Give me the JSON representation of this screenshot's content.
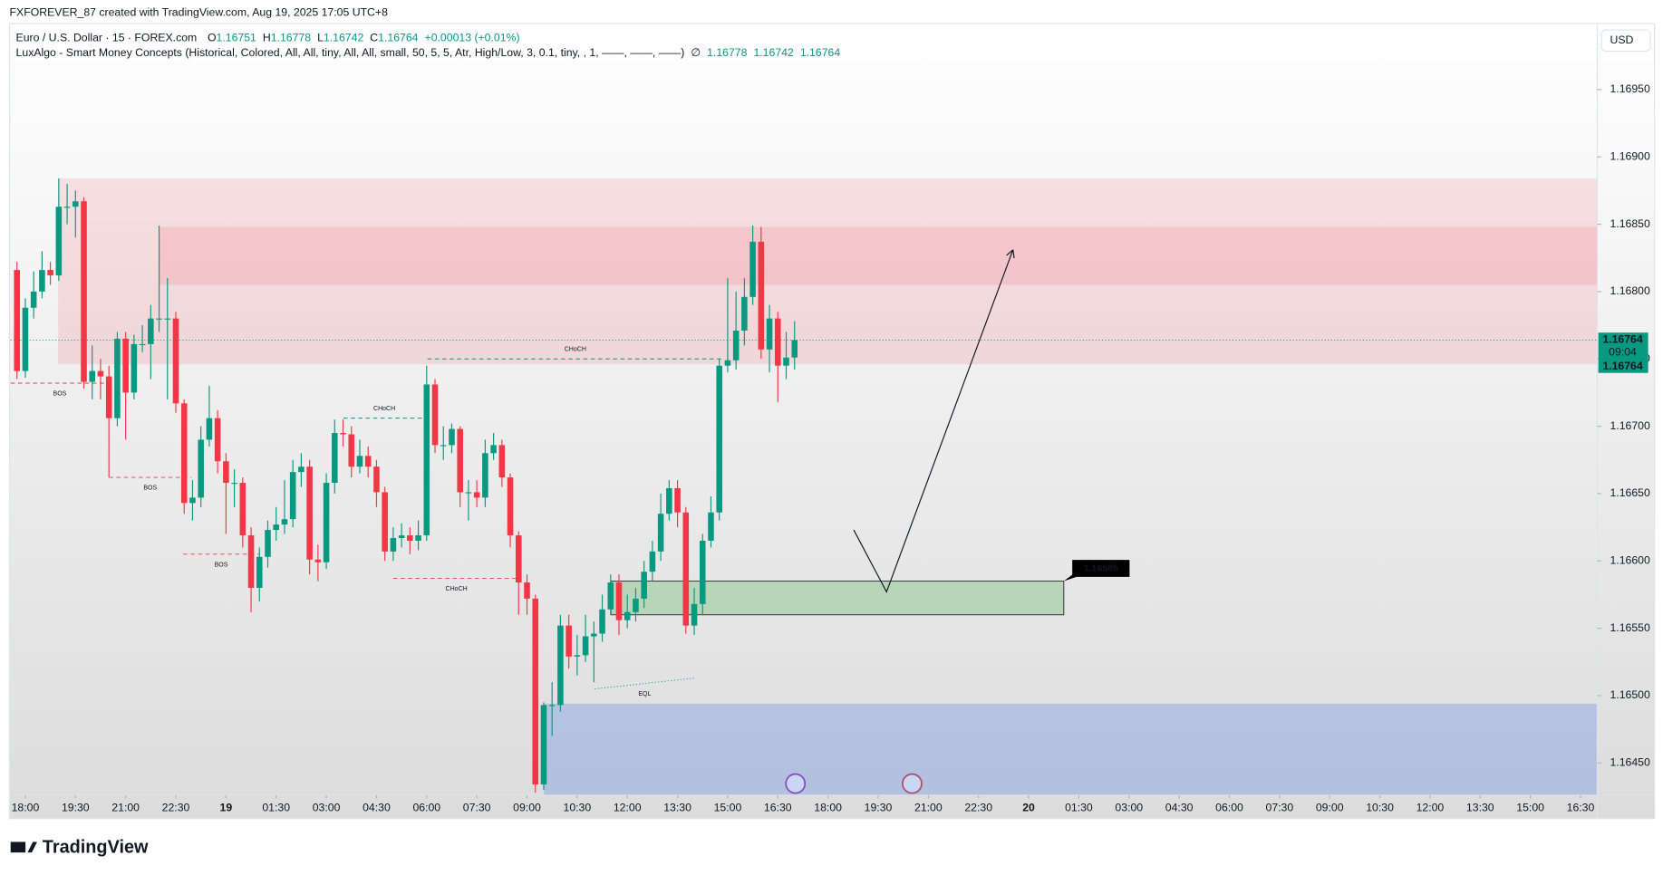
{
  "header": {
    "credit": "FXFOREVER_87 created with TradingView.com, Aug 19, 2025 17:05 UTC+8",
    "currency": "USD",
    "brand": "TradingView"
  },
  "chart_data": {
    "type": "candlestick",
    "symbol": "Euro / U.S. Dollar · 15 · FOREX.com",
    "ohlc": [
      {
        "label": "O",
        "value": 1.16751
      },
      {
        "label": "H",
        "value": 1.16778
      },
      {
        "label": "L",
        "value": 1.16742
      },
      {
        "label": "C",
        "value": 1.16764
      }
    ],
    "change": "+0.00013 (+0.01%)",
    "indicator": {
      "name": "LuxAlgo - Smart Money Concepts (Historical, Colored, All, All, tiny, All, All, small, 50, 5, 5, Atr, High/Low, 3, 0.1, tiny, , 1, ——, ——, ——)",
      "status": "∅",
      "values": [
        1.16778,
        1.16742,
        1.16764
      ]
    },
    "up_color": "#089981",
    "down_color": "#f23645",
    "grid": false,
    "x": [
      17.75,
      18,
      18.25,
      18.5,
      18.75,
      19,
      19.25,
      19.5,
      19.75,
      20,
      20.25,
      20.5,
      20.75,
      21,
      21.25,
      21.5,
      21.75,
      22,
      22.25,
      22.5,
      22.75,
      23,
      23.25,
      23.5,
      23.75,
      24,
      24.25,
      24.5,
      24.75,
      25,
      25.25,
      25.5,
      25.75,
      26,
      26.25,
      26.5,
      26.75,
      27,
      27.25,
      27.5,
      27.75,
      28,
      28.25,
      28.5,
      28.75,
      29,
      29.25,
      29.5,
      29.75,
      30,
      30.25,
      30.5,
      30.75,
      31,
      31.25,
      31.5,
      31.75,
      32,
      32.25,
      32.5,
      32.75,
      33,
      33.25,
      33.5,
      33.75,
      34,
      34.25,
      34.5,
      34.75,
      35,
      35.25,
      35.5,
      35.75,
      36,
      36.25,
      36.5,
      36.75,
      37,
      37.25,
      37.5,
      37.75,
      38,
      38.25,
      38.5,
      38.75,
      39,
      39.25,
      39.5,
      39.75,
      40,
      40.25,
      40.5,
      40.75,
      41
    ],
    "open": [
      1.16816,
      1.16741,
      1.16788,
      1.168,
      1.16816,
      1.16812,
      1.16863,
      1.16863,
      1.16867,
      1.16733,
      1.16741,
      1.16737,
      1.16706,
      1.16765,
      1.16725,
      1.16761,
      1.16761,
      1.1678,
      1.1678,
      1.1678,
      1.16717,
      1.16643,
      1.16647,
      1.1669,
      1.16706,
      1.16674,
      1.16658,
      1.16658,
      1.16619,
      1.1658,
      1.16603,
      1.16623,
      1.16627,
      1.16631,
      1.16666,
      1.1667,
      1.16601,
      1.16599,
      1.16658,
      1.16695,
      1.16694,
      1.1667,
      1.16678,
      1.1667,
      1.16651,
      1.16607,
      1.16617,
      1.16619,
      1.16615,
      1.16619,
      1.16731,
      1.16686,
      1.16686,
      1.16698,
      1.16651,
      1.16651,
      1.16647,
      1.1668,
      1.16686,
      1.16662,
      1.16619,
      1.16584,
      1.16572,
      1.16434,
      1.16493,
      1.16493,
      1.16552,
      1.16529,
      1.1653,
      1.16544,
      1.16546,
      1.16564,
      1.16584,
      1.16556,
      1.16562,
      1.16572,
      1.16592,
      1.16607,
      1.16635,
      1.16654,
      1.16636,
      1.16552,
      1.16568,
      1.16615,
      1.16636,
      1.16745,
      1.16749,
      1.16771,
      1.16796,
      1.16837,
      1.16757,
      1.1678,
      1.16745,
      1.16751
    ],
    "high": [
      1.16822,
      1.16795,
      1.16815,
      1.1683,
      1.16822,
      1.16884,
      1.1688,
      1.16875,
      1.1687,
      1.1676,
      1.1675,
      1.16745,
      1.1677,
      1.1677,
      1.16768,
      1.16775,
      1.1679,
      1.16849,
      1.1681,
      1.16785,
      1.1672,
      1.1666,
      1.167,
      1.1673,
      1.16712,
      1.1668,
      1.16668,
      1.16662,
      1.16625,
      1.1661,
      1.1663,
      1.1664,
      1.1666,
      1.16675,
      1.1668,
      1.16675,
      1.16612,
      1.16665,
      1.16705,
      1.16705,
      1.167,
      1.1669,
      1.16685,
      1.16675,
      1.16655,
      1.16625,
      1.16628,
      1.16625,
      1.1663,
      1.16745,
      1.16735,
      1.167,
      1.16702,
      1.167,
      1.1666,
      1.1666,
      1.1669,
      1.16695,
      1.1669,
      1.16665,
      1.16622,
      1.1659,
      1.16575,
      1.16495,
      1.1651,
      1.1656,
      1.1656,
      1.16545,
      1.1656,
      1.16555,
      1.16575,
      1.1659,
      1.1659,
      1.16575,
      1.1658,
      1.166,
      1.16615,
      1.1665,
      1.1666,
      1.1666,
      1.1664,
      1.1658,
      1.1662,
      1.16648,
      1.1675,
      1.1681,
      1.168,
      1.1681,
      1.16849,
      1.16848,
      1.1679,
      1.16785,
      1.1677,
      1.16778
    ],
    "low": [
      1.16735,
      1.16736,
      1.1678,
      1.16795,
      1.16805,
      1.16808,
      1.1685,
      1.1684,
      1.16728,
      1.1672,
      1.1672,
      1.16662,
      1.167,
      1.1669,
      1.1672,
      1.16755,
      1.16735,
      1.1677,
      1.1672,
      1.1671,
      1.16635,
      1.1663,
      1.1664,
      1.16685,
      1.16665,
      1.1662,
      1.1664,
      1.1661,
      1.16562,
      1.1657,
      1.16595,
      1.16615,
      1.1662,
      1.16625,
      1.16655,
      1.1659,
      1.16585,
      1.16594,
      1.1665,
      1.16685,
      1.16662,
      1.16665,
      1.16662,
      1.1664,
      1.166,
      1.166,
      1.1661,
      1.16605,
      1.16608,
      1.16615,
      1.1668,
      1.16675,
      1.1668,
      1.1664,
      1.1663,
      1.1664,
      1.1664,
      1.16675,
      1.16655,
      1.1661,
      1.1656,
      1.1656,
      1.16428,
      1.1643,
      1.1647,
      1.16488,
      1.1652,
      1.16515,
      1.16525,
      1.1651,
      1.1654,
      1.1656,
      1.16545,
      1.1655,
      1.16555,
      1.16565,
      1.16585,
      1.166,
      1.1663,
      1.16625,
      1.16546,
      1.16545,
      1.1656,
      1.1661,
      1.1663,
      1.1674,
      1.16742,
      1.1676,
      1.1679,
      1.1675,
      1.1674,
      1.16718,
      1.16735,
      1.16742
    ],
    "close": [
      1.16741,
      1.16788,
      1.168,
      1.16816,
      1.16812,
      1.16863,
      1.16863,
      1.16867,
      1.16733,
      1.16741,
      1.16737,
      1.16706,
      1.16765,
      1.16725,
      1.16761,
      1.16761,
      1.1678,
      1.1678,
      1.1678,
      1.16717,
      1.16643,
      1.16647,
      1.1669,
      1.16706,
      1.16674,
      1.16658,
      1.16658,
      1.16619,
      1.1658,
      1.16603,
      1.16623,
      1.16627,
      1.16631,
      1.16666,
      1.1667,
      1.16601,
      1.16599,
      1.16658,
      1.16695,
      1.16694,
      1.1667,
      1.16678,
      1.1667,
      1.16651,
      1.16607,
      1.16617,
      1.16619,
      1.16615,
      1.16619,
      1.16731,
      1.16686,
      1.16686,
      1.16698,
      1.16651,
      1.16651,
      1.16647,
      1.1668,
      1.16686,
      1.16662,
      1.16619,
      1.16584,
      1.16572,
      1.16434,
      1.16493,
      1.16493,
      1.16552,
      1.16529,
      1.1653,
      1.16544,
      1.16546,
      1.16564,
      1.16584,
      1.16556,
      1.16562,
      1.16572,
      1.16592,
      1.16607,
      1.16635,
      1.16654,
      1.16636,
      1.16552,
      1.16568,
      1.16615,
      1.16636,
      1.16745,
      1.16749,
      1.16771,
      1.16796,
      1.16837,
      1.16757,
      1.1678,
      1.16745,
      1.16751,
      1.16764
    ],
    "xlim": [
      17.56,
      65.0
    ],
    "xticks": [
      {
        "value": 18,
        "label": "18:00"
      },
      {
        "value": 19.5,
        "label": "19:30"
      },
      {
        "value": 21,
        "label": "21:00"
      },
      {
        "value": 22.5,
        "label": "22:30"
      },
      {
        "value": 24,
        "label": "19"
      },
      {
        "value": 25.5,
        "label": "01:30"
      },
      {
        "value": 27,
        "label": "03:00"
      },
      {
        "value": 28.5,
        "label": "04:30"
      },
      {
        "value": 30,
        "label": "06:00"
      },
      {
        "value": 31.5,
        "label": "07:30"
      },
      {
        "value": 33,
        "label": "09:00"
      },
      {
        "value": 34.5,
        "label": "10:30"
      },
      {
        "value": 36,
        "label": "12:00"
      },
      {
        "value": 37.5,
        "label": "13:30"
      },
      {
        "value": 39,
        "label": "15:00"
      },
      {
        "value": 40.5,
        "label": "16:30"
      },
      {
        "value": 42,
        "label": "18:00"
      },
      {
        "value": 43.5,
        "label": "19:30"
      },
      {
        "value": 45,
        "label": "21:00"
      },
      {
        "value": 46.5,
        "label": "22:30"
      },
      {
        "value": 48,
        "label": "20"
      },
      {
        "value": 49.5,
        "label": "01:30"
      },
      {
        "value": 51,
        "label": "03:00"
      },
      {
        "value": 52.5,
        "label": "04:30"
      },
      {
        "value": 54,
        "label": "06:00"
      },
      {
        "value": 55.5,
        "label": "07:30"
      },
      {
        "value": 57,
        "label": "09:00"
      },
      {
        "value": 58.5,
        "label": "10:30"
      },
      {
        "value": 60,
        "label": "12:00"
      },
      {
        "value": 61.5,
        "label": "13:30"
      },
      {
        "value": 63,
        "label": "15:00"
      },
      {
        "value": 64.5,
        "label": "16:30"
      }
    ],
    "ylim": [
      1.16426,
      1.16999
    ],
    "yticks": [
      {
        "value": 1.1645,
        "label": "1.16450"
      },
      {
        "value": 1.165,
        "label": "1.16500"
      },
      {
        "value": 1.1655,
        "label": "1.16550"
      },
      {
        "value": 1.166,
        "label": "1.16600"
      },
      {
        "value": 1.1665,
        "label": "1.16650"
      },
      {
        "value": 1.167,
        "label": "1.16700"
      },
      {
        "value": 1.1675,
        "label": "1.16750"
      },
      {
        "value": 1.168,
        "label": "1.16800"
      },
      {
        "value": 1.1685,
        "label": "1.16850"
      },
      {
        "value": 1.169,
        "label": "1.16900"
      },
      {
        "value": 1.1695,
        "label": "1.16950"
      }
    ],
    "last_price": 1.16764,
    "countdown": "09:04",
    "zones": [
      {
        "top": 1.16884,
        "bottom": 1.16746,
        "from": 18.98,
        "to": 65.0,
        "color": "rgba(242,54,69,0.13)"
      },
      {
        "top": 1.16848,
        "bottom": 1.16805,
        "from": 22.0,
        "to": 65.0,
        "color": "rgba(242,54,69,0.13)"
      },
      {
        "top": 1.16494,
        "bottom": 1.16426,
        "from": 33.51,
        "to": 65.0,
        "color": "rgba(100,140,225,0.35)"
      },
      {
        "top": 1.16585,
        "bottom": 1.1656,
        "from": 35.51,
        "to": 49.05,
        "color": "rgba(76,175,80,0.3)",
        "border": "#2a2e39",
        "label": 1.16585
      }
    ],
    "structures": [
      {
        "label": "BOS",
        "color": "#f23645",
        "start": [
          17.56,
          1.16732
        ],
        "end": [
          20.5,
          1.16732
        ]
      },
      {
        "label": "BOS",
        "color": "#f23645",
        "start": [
          20.5,
          1.16662
        ],
        "end": [
          22.97,
          1.16662
        ]
      },
      {
        "label": "BOS",
        "color": "#f23645",
        "start": [
          22.72,
          1.16605
        ],
        "end": [
          24.99,
          1.16605
        ]
      },
      {
        "label": "CHoCH",
        "color": "#089981",
        "start": [
          27.51,
          1.16706
        ],
        "end": [
          29.96,
          1.16706
        ]
      },
      {
        "label": "CHoCH",
        "color": "#f23645",
        "start": [
          29.0,
          1.16587
        ],
        "end": [
          32.78,
          1.16587
        ]
      },
      {
        "label": "CHoCH",
        "color": "#089981",
        "start": [
          30.02,
          1.1675
        ],
        "end": [
          38.87,
          1.1675
        ]
      },
      {
        "label": "EQL",
        "color": "#089981",
        "start": [
          35.03,
          1.16505
        ],
        "end": [
          38.01,
          1.16513
        ]
      }
    ],
    "arrow": {
      "x": [
        42.77,
        43.75,
        47.53
      ],
      "y": [
        1.16623,
        1.16577,
        1.16831
      ]
    }
  }
}
